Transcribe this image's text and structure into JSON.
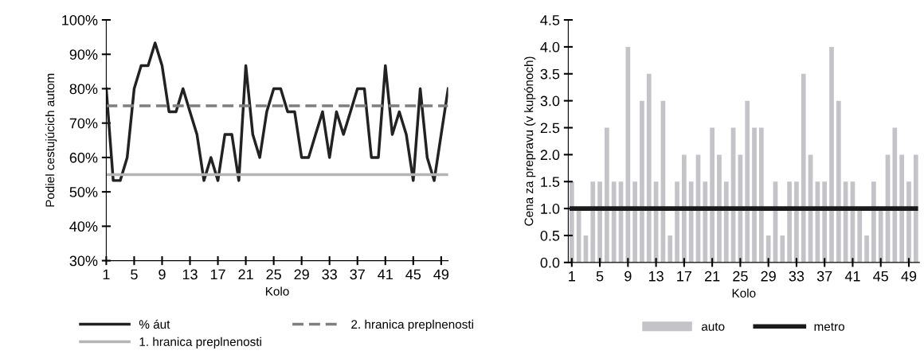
{
  "chart_data": [
    {
      "type": "line",
      "xlabel": "Kolo",
      "ylabel": "Podiel cestujúcich autom",
      "x": [
        1,
        2,
        3,
        4,
        5,
        6,
        7,
        8,
        9,
        10,
        11,
        12,
        13,
        14,
        15,
        16,
        17,
        18,
        19,
        20,
        21,
        22,
        23,
        24,
        25,
        26,
        27,
        28,
        29,
        30,
        31,
        32,
        33,
        34,
        35,
        36,
        37,
        38,
        39,
        40,
        41,
        42,
        43,
        44,
        45,
        46,
        47,
        48,
        49,
        50
      ],
      "series": [
        {
          "name": "% áut",
          "color": "#222222",
          "values": [
            80,
            53.3,
            53.3,
            60,
            80,
            86.7,
            86.7,
            93.3,
            86.7,
            73.3,
            73.3,
            80,
            73.3,
            66.7,
            53.3,
            60,
            53.3,
            66.7,
            66.7,
            53.3,
            86.7,
            66.7,
            60,
            73.3,
            80,
            80,
            73.3,
            73.3,
            60,
            60,
            66.7,
            73.3,
            60,
            73.3,
            66.7,
            73.3,
            80,
            80,
            60,
            60,
            86.7,
            66.7,
            73.3,
            66.7,
            53.3,
            80,
            60,
            53.3,
            66.7,
            80
          ]
        }
      ],
      "ref_lines": [
        {
          "axis": "y",
          "value": 55,
          "label": "1. hranica preplnenosti",
          "color": "#b4b4b4",
          "line_style": "solid"
        },
        {
          "axis": "y",
          "value": 75,
          "label": "2. hranica preplnenosti",
          "color": "#7f7f7f",
          "line_style": "dashed"
        }
      ],
      "xlim": [
        1,
        50
      ],
      "xticks": [
        1,
        5,
        9,
        13,
        17,
        21,
        25,
        29,
        33,
        37,
        41,
        45,
        49
      ],
      "ylim": [
        30,
        100
      ],
      "yticks": [
        {
          "value": 30,
          "label": "30%"
        },
        {
          "value": 40,
          "label": "40%"
        },
        {
          "value": 50,
          "label": "50%"
        },
        {
          "value": 60,
          "label": "60%"
        },
        {
          "value": 70,
          "label": "70%"
        },
        {
          "value": 80,
          "label": "80%"
        },
        {
          "value": 90,
          "label": "90%"
        },
        {
          "value": 100,
          "label": "100%"
        }
      ],
      "grid": false,
      "legend": "bottom"
    },
    {
      "type": "bar",
      "xlabel": "Kolo",
      "ylabel": "Cena za prepravu (v kupónoch)",
      "categories": [
        "1",
        null,
        null,
        null,
        "5",
        null,
        null,
        null,
        "9",
        null,
        null,
        null,
        "13",
        null,
        null,
        null,
        "17",
        null,
        null,
        null,
        "21",
        null,
        null,
        null,
        "25",
        null,
        null,
        null,
        "29",
        null,
        null,
        null,
        "33",
        null,
        null,
        null,
        "37",
        null,
        null,
        null,
        "41",
        null,
        null,
        null,
        "45",
        null,
        null,
        null,
        "49",
        null
      ],
      "series": [
        {
          "name": "auto",
          "color": "#c4c4c8",
          "values": [
            1.5,
            1.0,
            0.5,
            1.5,
            1.5,
            2.5,
            1.5,
            1.5,
            4.0,
            1.5,
            3.0,
            3.5,
            1.5,
            3.0,
            0.5,
            1.5,
            2.0,
            1.5,
            2.0,
            1.5,
            2.5,
            2.0,
            1.5,
            2.5,
            2.0,
            3.0,
            2.5,
            2.5,
            0.5,
            1.5,
            0.5,
            1.5,
            1.5,
            3.5,
            2.0,
            1.5,
            1.5,
            4.0,
            3.0,
            1.5,
            1.5,
            1.0,
            0.5,
            1.5,
            1.0,
            2.0,
            2.5,
            2.0,
            1.5,
            2.0
          ]
        },
        {
          "name": "metro",
          "type": "line",
          "color": "#1a1a1a",
          "values": [
            1,
            1,
            1,
            1,
            1,
            1,
            1,
            1,
            1,
            1,
            1,
            1,
            1,
            1,
            1,
            1,
            1,
            1,
            1,
            1,
            1,
            1,
            1,
            1,
            1,
            1,
            1,
            1,
            1,
            1,
            1,
            1,
            1,
            1,
            1,
            1,
            1,
            1,
            1,
            1,
            1,
            1,
            1,
            1,
            1,
            1,
            1,
            1,
            1,
            1
          ]
        }
      ],
      "ylim": [
        0,
        4.5
      ],
      "yticks": [
        {
          "value": 0,
          "label": "0.0"
        },
        {
          "value": 0.5,
          "label": "0.5"
        },
        {
          "value": 1,
          "label": "1.0"
        },
        {
          "value": 1.5,
          "label": "1.5"
        },
        {
          "value": 2,
          "label": "2.0"
        },
        {
          "value": 2.5,
          "label": "2.5"
        },
        {
          "value": 3,
          "label": "3.0"
        },
        {
          "value": 3.5,
          "label": "3.5"
        },
        {
          "value": 4,
          "label": "4.0"
        },
        {
          "value": 4.5,
          "label": "4.5"
        }
      ],
      "grid": false,
      "legend": "bottom"
    }
  ]
}
